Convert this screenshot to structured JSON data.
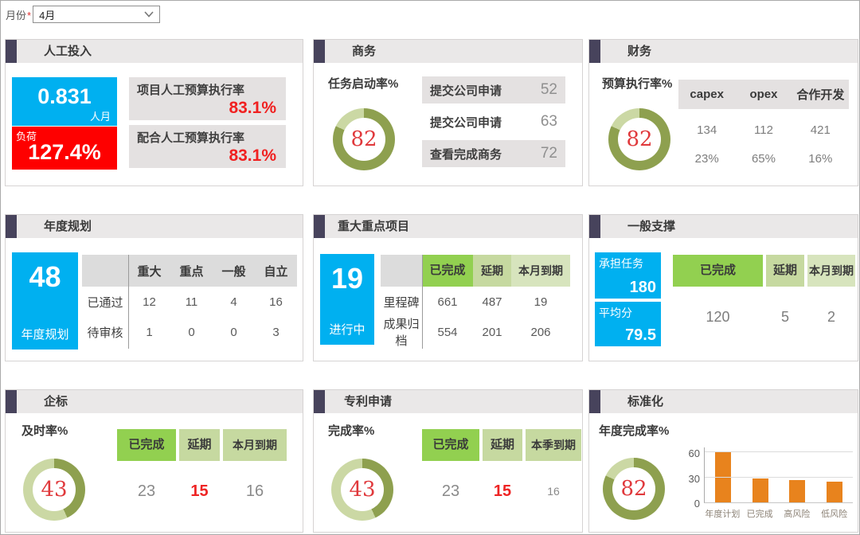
{
  "filter": {
    "label": "月份",
    "required_mark": "*",
    "value": "4月"
  },
  "colors": {
    "accent": "#47435c",
    "header_bg": "#eae8e8",
    "blue": "#00b0f0",
    "red": "#fe0000",
    "gray_box": "#e4e1e1",
    "green": "#92d050",
    "green_mid": "#c6d9a0",
    "green_light": "#d7e4bd",
    "donut_main": "#8ea04f",
    "donut_rest": "#cbd8a4",
    "value_red": "#e0393c",
    "bar_orange": "#e8831d"
  },
  "panels": {
    "labor": {
      "title": "人工投入",
      "workload_value": "0.831",
      "workload_unit": "人月",
      "load_label": "负荷",
      "load_value": "127.4%",
      "rate1_label": "项目人工预算执行率",
      "rate1_value": "83.1%",
      "rate2_label": "配合人工预算执行率",
      "rate2_value": "83.1%"
    },
    "business": {
      "title": "商务",
      "gauge_label": "任务启动率%",
      "gauge_value": 82,
      "rows": [
        {
          "label": "提交公司申请",
          "value": "52"
        },
        {
          "label": "提交公司申请",
          "value": "63"
        },
        {
          "label": "查看完成商务",
          "value": "72"
        }
      ]
    },
    "finance": {
      "title": "财务",
      "gauge_label": "预算执行率%",
      "gauge_value": 82,
      "columns": [
        "capex",
        "opex",
        "合作开发"
      ],
      "rows": [
        [
          "134",
          "112",
          "421"
        ],
        [
          "23%",
          "65%",
          "16%"
        ]
      ]
    },
    "annual_plan": {
      "title": "年度规划",
      "big_value": "48",
      "big_label": "年度规划",
      "columns": [
        "重大",
        "重点",
        "一般",
        "自立"
      ],
      "rows": [
        {
          "label": "已通过",
          "values": [
            "12",
            "11",
            "4",
            "16"
          ]
        },
        {
          "label": "待审核",
          "values": [
            "1",
            "0",
            "0",
            "3"
          ]
        }
      ]
    },
    "major_projects": {
      "title": "重大重点项目",
      "big_value": "19",
      "big_label": "进行中",
      "columns": [
        "已完成",
        "延期",
        "本月到期"
      ],
      "rows": [
        {
          "label": "里程碑",
          "values": [
            "661",
            "487",
            "19"
          ]
        },
        {
          "label": "成果归档",
          "values": [
            "554",
            "201",
            "206"
          ]
        }
      ]
    },
    "general_support": {
      "title": "一般支撑",
      "metric1_label": "承担任务",
      "metric1_value": "180",
      "metric2_label": "平均分",
      "metric2_value": "79.5",
      "columns": [
        "已完成",
        "延期",
        "本月到期"
      ],
      "values": [
        "120",
        "5",
        "2"
      ]
    },
    "enterprise_std": {
      "title": "企标",
      "gauge_label": "及时率%",
      "gauge_value": 43,
      "columns": [
        "已完成",
        "延期",
        "本月到期"
      ],
      "values": [
        "23",
        "15",
        "16"
      ]
    },
    "patents": {
      "title": "专利申请",
      "gauge_label": "完成率%",
      "gauge_value": 43,
      "columns": [
        "已完成",
        "延期",
        "本季到期"
      ],
      "values": [
        "23",
        "15",
        "16"
      ]
    },
    "standardization": {
      "title": "标准化",
      "gauge_label": "年度完成率%",
      "gauge_value": 82
    }
  },
  "chart_data": {
    "type": "bar",
    "title": "",
    "categories": [
      "年度计划",
      "已完成",
      "高风险",
      "低风险"
    ],
    "values": [
      60,
      29,
      27,
      25
    ],
    "yticks": [
      0,
      30,
      60
    ],
    "ylim": [
      0,
      66
    ],
    "xlabel": "",
    "ylabel": "",
    "grid": true,
    "bar_color": "#e8831d",
    "legend": null
  }
}
